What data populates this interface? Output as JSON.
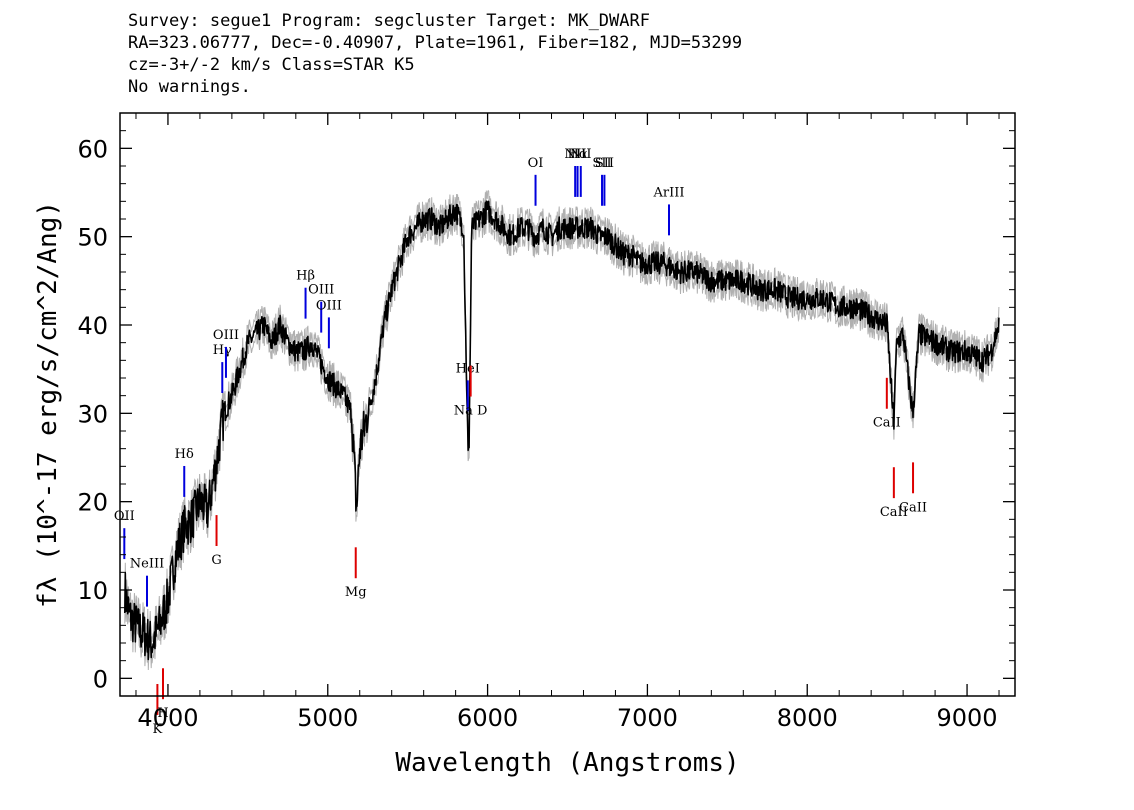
{
  "header": {
    "line1": "Survey: segue1 Program: segcluster Target: MK_DWARF",
    "line2": "RA=323.06777, Dec=-0.40907, Plate=1961, Fiber=182, MJD=53299",
    "line3": "cz=-3+/-2 km/s Class=STAR K5",
    "line4": "No warnings."
  },
  "colors": {
    "spectrum": "#000000",
    "error": "#b0b0b0",
    "emission": "#0000dd",
    "absorption": "#dd0000"
  },
  "chart_data": {
    "type": "line",
    "xlabel": "Wavelength (Angstroms)",
    "ylabel": "fλ (10^-17 erg/s/cm^2/Ang)",
    "xlim": [
      3700,
      9300
    ],
    "ylim": [
      -2,
      64
    ],
    "x_ticks": [
      4000,
      5000,
      6000,
      7000,
      8000,
      9000
    ],
    "y_ticks": [
      0,
      10,
      20,
      30,
      40,
      50,
      60
    ],
    "series": [
      {
        "x": [
          3730,
          3760,
          3800,
          3850,
          3900,
          3950,
          4000,
          4050,
          4100,
          4150,
          4200,
          4250,
          4300,
          4350,
          4400,
          4450,
          4500,
          4550,
          4600,
          4650,
          4700,
          4750,
          4800,
          4850,
          4900,
          4950,
          5000,
          5050,
          5100,
          5150,
          5180,
          5200,
          5250,
          5300,
          5350,
          5400,
          5450,
          5500,
          5550,
          5600,
          5650,
          5700,
          5750,
          5800,
          5850,
          5880,
          5890,
          5900,
          5950,
          6000,
          6050,
          6100,
          6150,
          6200,
          6250,
          6300,
          6350,
          6400,
          6450,
          6500,
          6550,
          6600,
          6650,
          6700,
          6750,
          6800,
          6850,
          6900,
          6950,
          7000,
          7100,
          7200,
          7300,
          7400,
          7500,
          7600,
          7700,
          7800,
          7900,
          8000,
          8100,
          8200,
          8300,
          8400,
          8500,
          8540,
          8560,
          8600,
          8660,
          8700,
          8800,
          8900,
          9000,
          9100,
          9150,
          9200
        ],
        "y": [
          10,
          7,
          6,
          5,
          4,
          6,
          9,
          14,
          17,
          18,
          20,
          19,
          24,
          30,
          32,
          35,
          38,
          39,
          40,
          38,
          40,
          38,
          37,
          37,
          38,
          36,
          34,
          33,
          32,
          30,
          19,
          26,
          30,
          34,
          40,
          44,
          47,
          50,
          51,
          52,
          52,
          51,
          52,
          53,
          51,
          23,
          35,
          51,
          52,
          53,
          52,
          51,
          50,
          51,
          51,
          50,
          51,
          50,
          51,
          51,
          51,
          51,
          51,
          50,
          50,
          49,
          48,
          48,
          47,
          47,
          47,
          46,
          46,
          45,
          45,
          45,
          44,
          44,
          43,
          43,
          43,
          42,
          42,
          41,
          40,
          29,
          38,
          39,
          30,
          39,
          38,
          37,
          37,
          36,
          37,
          40
        ]
      }
    ],
    "emission_lines": [
      {
        "label": "OII",
        "x": 3727
      },
      {
        "label": "NeIII",
        "x": 3869
      },
      {
        "label": "Hδ",
        "x": 4102
      },
      {
        "label": "Hγ",
        "x": 4340
      },
      {
        "label": "OIII",
        "x": 4363
      },
      {
        "label": "Hβ",
        "x": 4861
      },
      {
        "label": "OIII",
        "x": 4959
      },
      {
        "label": "OIII",
        "x": 5007
      },
      {
        "label": "HeI",
        "x": 5876
      },
      {
        "label": "OI",
        "x": 6300
      },
      {
        "label": "NII",
        "x": 6548
      },
      {
        "label": "Hα",
        "x": 6563
      },
      {
        "label": "NII",
        "x": 6583
      },
      {
        "label": "SII",
        "x": 6716
      },
      {
        "label": "SII",
        "x": 6731
      },
      {
        "label": "ArIII",
        "x": 7135
      }
    ],
    "absorption_lines": [
      {
        "label": "K",
        "x": 3934
      },
      {
        "label": "H",
        "x": 3969
      },
      {
        "label": "G",
        "x": 4304
      },
      {
        "label": "Mg",
        "x": 5175
      },
      {
        "label": "Na D",
        "x": 5894
      },
      {
        "label": "CaII",
        "x": 8498
      },
      {
        "label": "CaII",
        "x": 8542
      },
      {
        "label": "CaII",
        "x": 8662
      }
    ]
  }
}
